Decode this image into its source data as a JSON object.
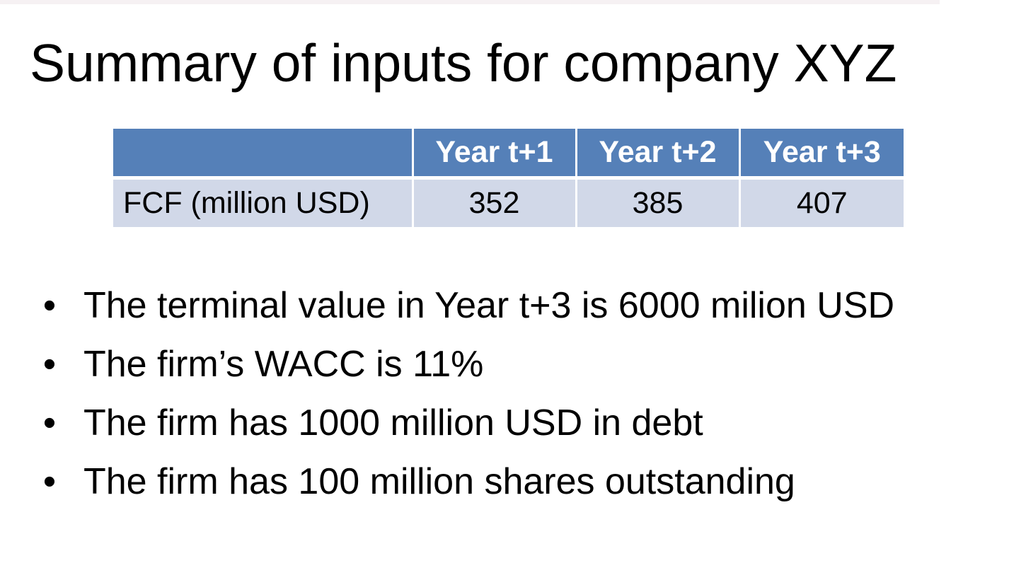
{
  "slide": {
    "title": "Summary of inputs for company XYZ"
  },
  "table": {
    "headers": [
      "",
      "Year t+1",
      "Year t+2",
      "Year t+3"
    ],
    "rows": [
      {
        "label": "FCF (million USD)",
        "values": [
          "352",
          "385",
          "407"
        ]
      }
    ],
    "colors": {
      "header_bg": "#5580b8",
      "header_text": "#ffffff",
      "row_bg": "#d1d8e8"
    }
  },
  "bullets": {
    "marker": "•",
    "items": [
      "The terminal value in Year t+3 is 6000 milion USD",
      "The firm’s WACC is 11%",
      "The firm has 1000 million USD in debt",
      "The firm has 100 million shares outstanding"
    ]
  }
}
